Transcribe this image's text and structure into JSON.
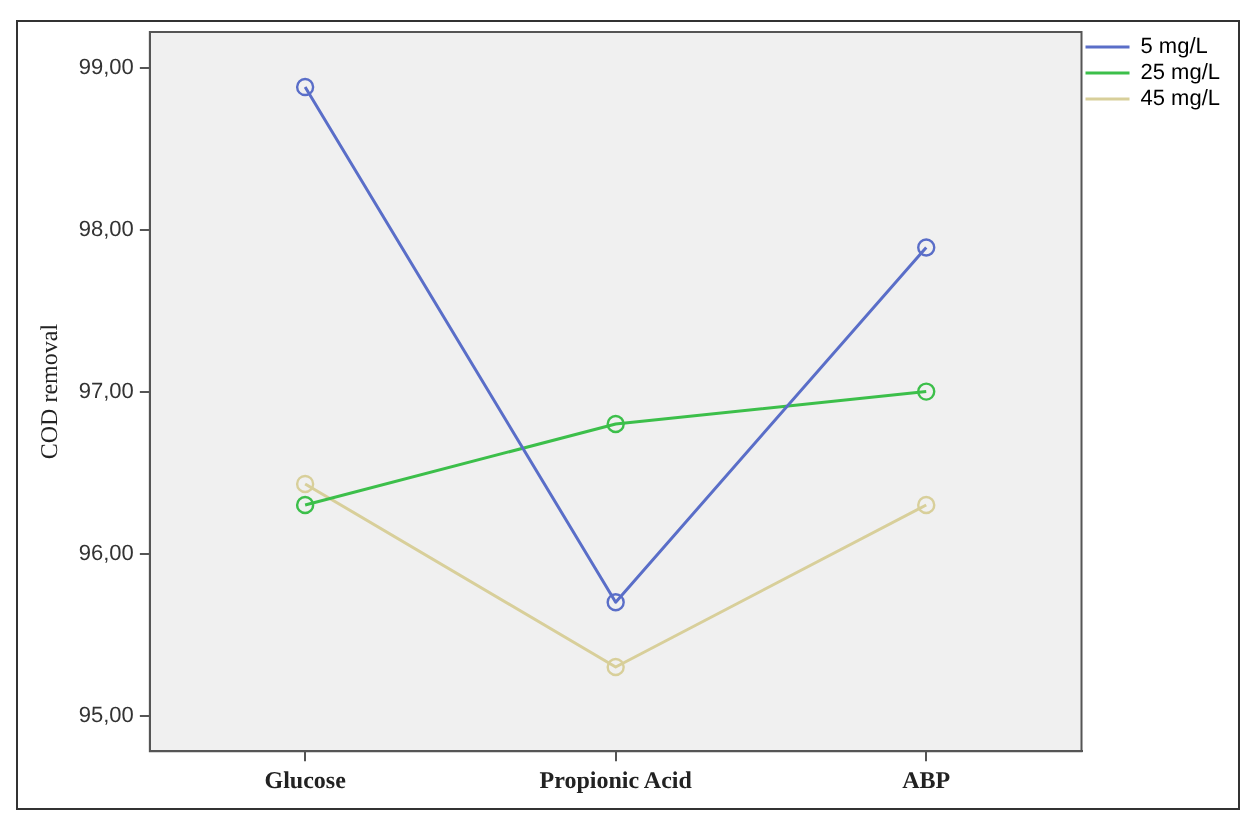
{
  "chart_data": {
    "type": "line",
    "ylabel": "COD removal",
    "categories": [
      "Glucose",
      "Propionic Acid",
      "ABP"
    ],
    "series": [
      {
        "name": "5 mg/L",
        "color": "#5a6ec8",
        "values": [
          98.88,
          95.7,
          97.89
        ]
      },
      {
        "name": "25 mg/L",
        "color": "#3cbf4a",
        "values": [
          96.3,
          96.8,
          97.0
        ]
      },
      {
        "name": "45 mg/L",
        "color": "#d8cf9a",
        "values": [
          96.43,
          95.3,
          96.3
        ]
      }
    ],
    "ylim": [
      94.78,
      99.22
    ],
    "yticks": [
      {
        "value": 95,
        "label": "95,00"
      },
      {
        "value": 96,
        "label": "96,00"
      },
      {
        "value": 97,
        "label": "97,00"
      },
      {
        "value": 98,
        "label": "98,00"
      },
      {
        "value": 99,
        "label": "99,00"
      }
    ],
    "marker": "circle",
    "line_style": "solid",
    "legend": "top right",
    "grid": false
  }
}
